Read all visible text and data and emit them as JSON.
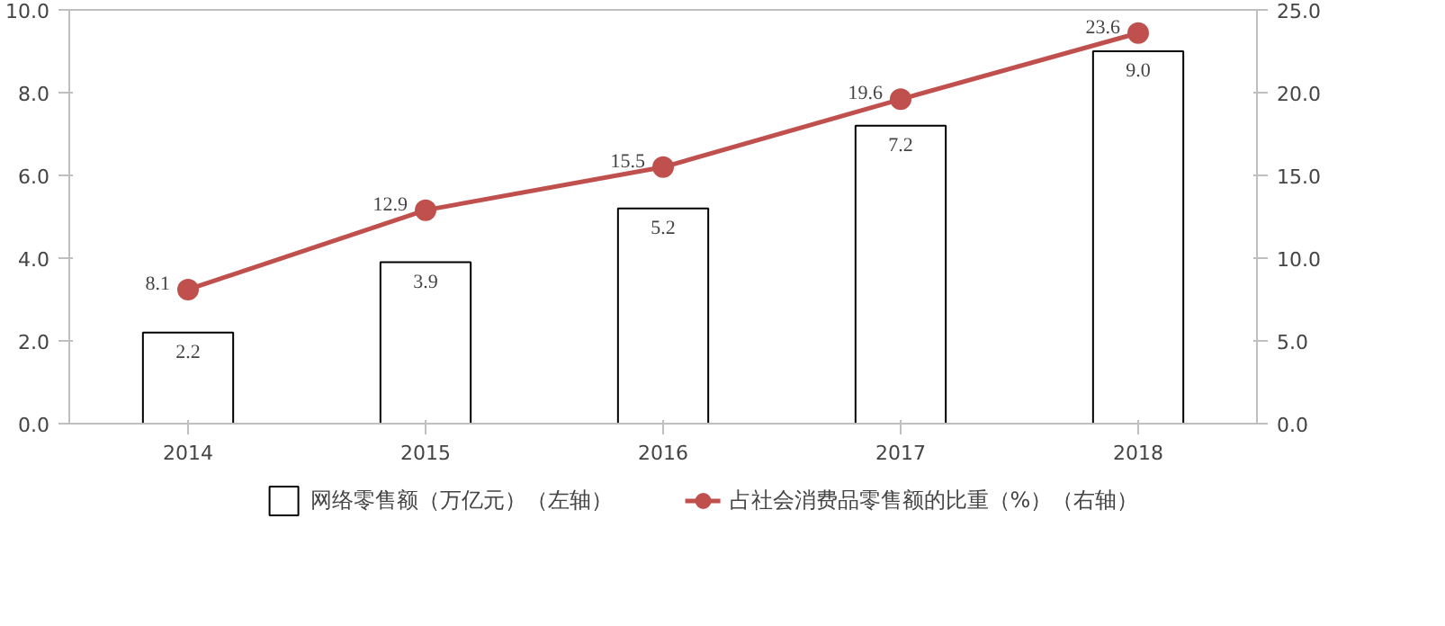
{
  "chart_data": {
    "type": "bar",
    "categories": [
      "2014",
      "2015",
      "2016",
      "2017",
      "2018"
    ],
    "series": [
      {
        "name": "网络零售额（万亿元）（左轴）",
        "color": "#ffffff",
        "values": [
          2.2,
          3.9,
          5.2,
          7.2,
          9.0
        ],
        "value_labels": [
          "2.2",
          "3.9",
          "5.2",
          "7.2",
          "9.0"
        ]
      },
      {
        "name": "占社会消费品零售额的比重（%）（右轴）",
        "type": "line",
        "axis": "y2",
        "color": "#c0504d",
        "values": [
          8.1,
          12.9,
          15.5,
          19.6,
          23.6
        ]
      }
    ],
    "ylim": [
      0,
      10
    ],
    "yticks": [
      {
        "value": 0,
        "label": "0.0"
      },
      {
        "value": 2,
        "label": "2.0"
      },
      {
        "value": 4,
        "label": "4.0"
      },
      {
        "value": 6,
        "label": "6.0"
      },
      {
        "value": 8,
        "label": "8.0"
      },
      {
        "value": 10,
        "label": "10.0"
      }
    ],
    "y2lim": [
      0,
      25
    ],
    "y2ticks": [
      {
        "value": 0,
        "label": "0.0"
      },
      {
        "value": 5,
        "label": "5.0"
      },
      {
        "value": 10,
        "label": "10.0"
      },
      {
        "value": 15,
        "label": "15.0"
      },
      {
        "value": 20,
        "label": "20.0"
      },
      {
        "value": 25,
        "label": "25.0"
      }
    ],
    "data_labels": true,
    "grid": false,
    "legend": "bottom",
    "marker": "circle",
    "line_style": "solid"
  }
}
